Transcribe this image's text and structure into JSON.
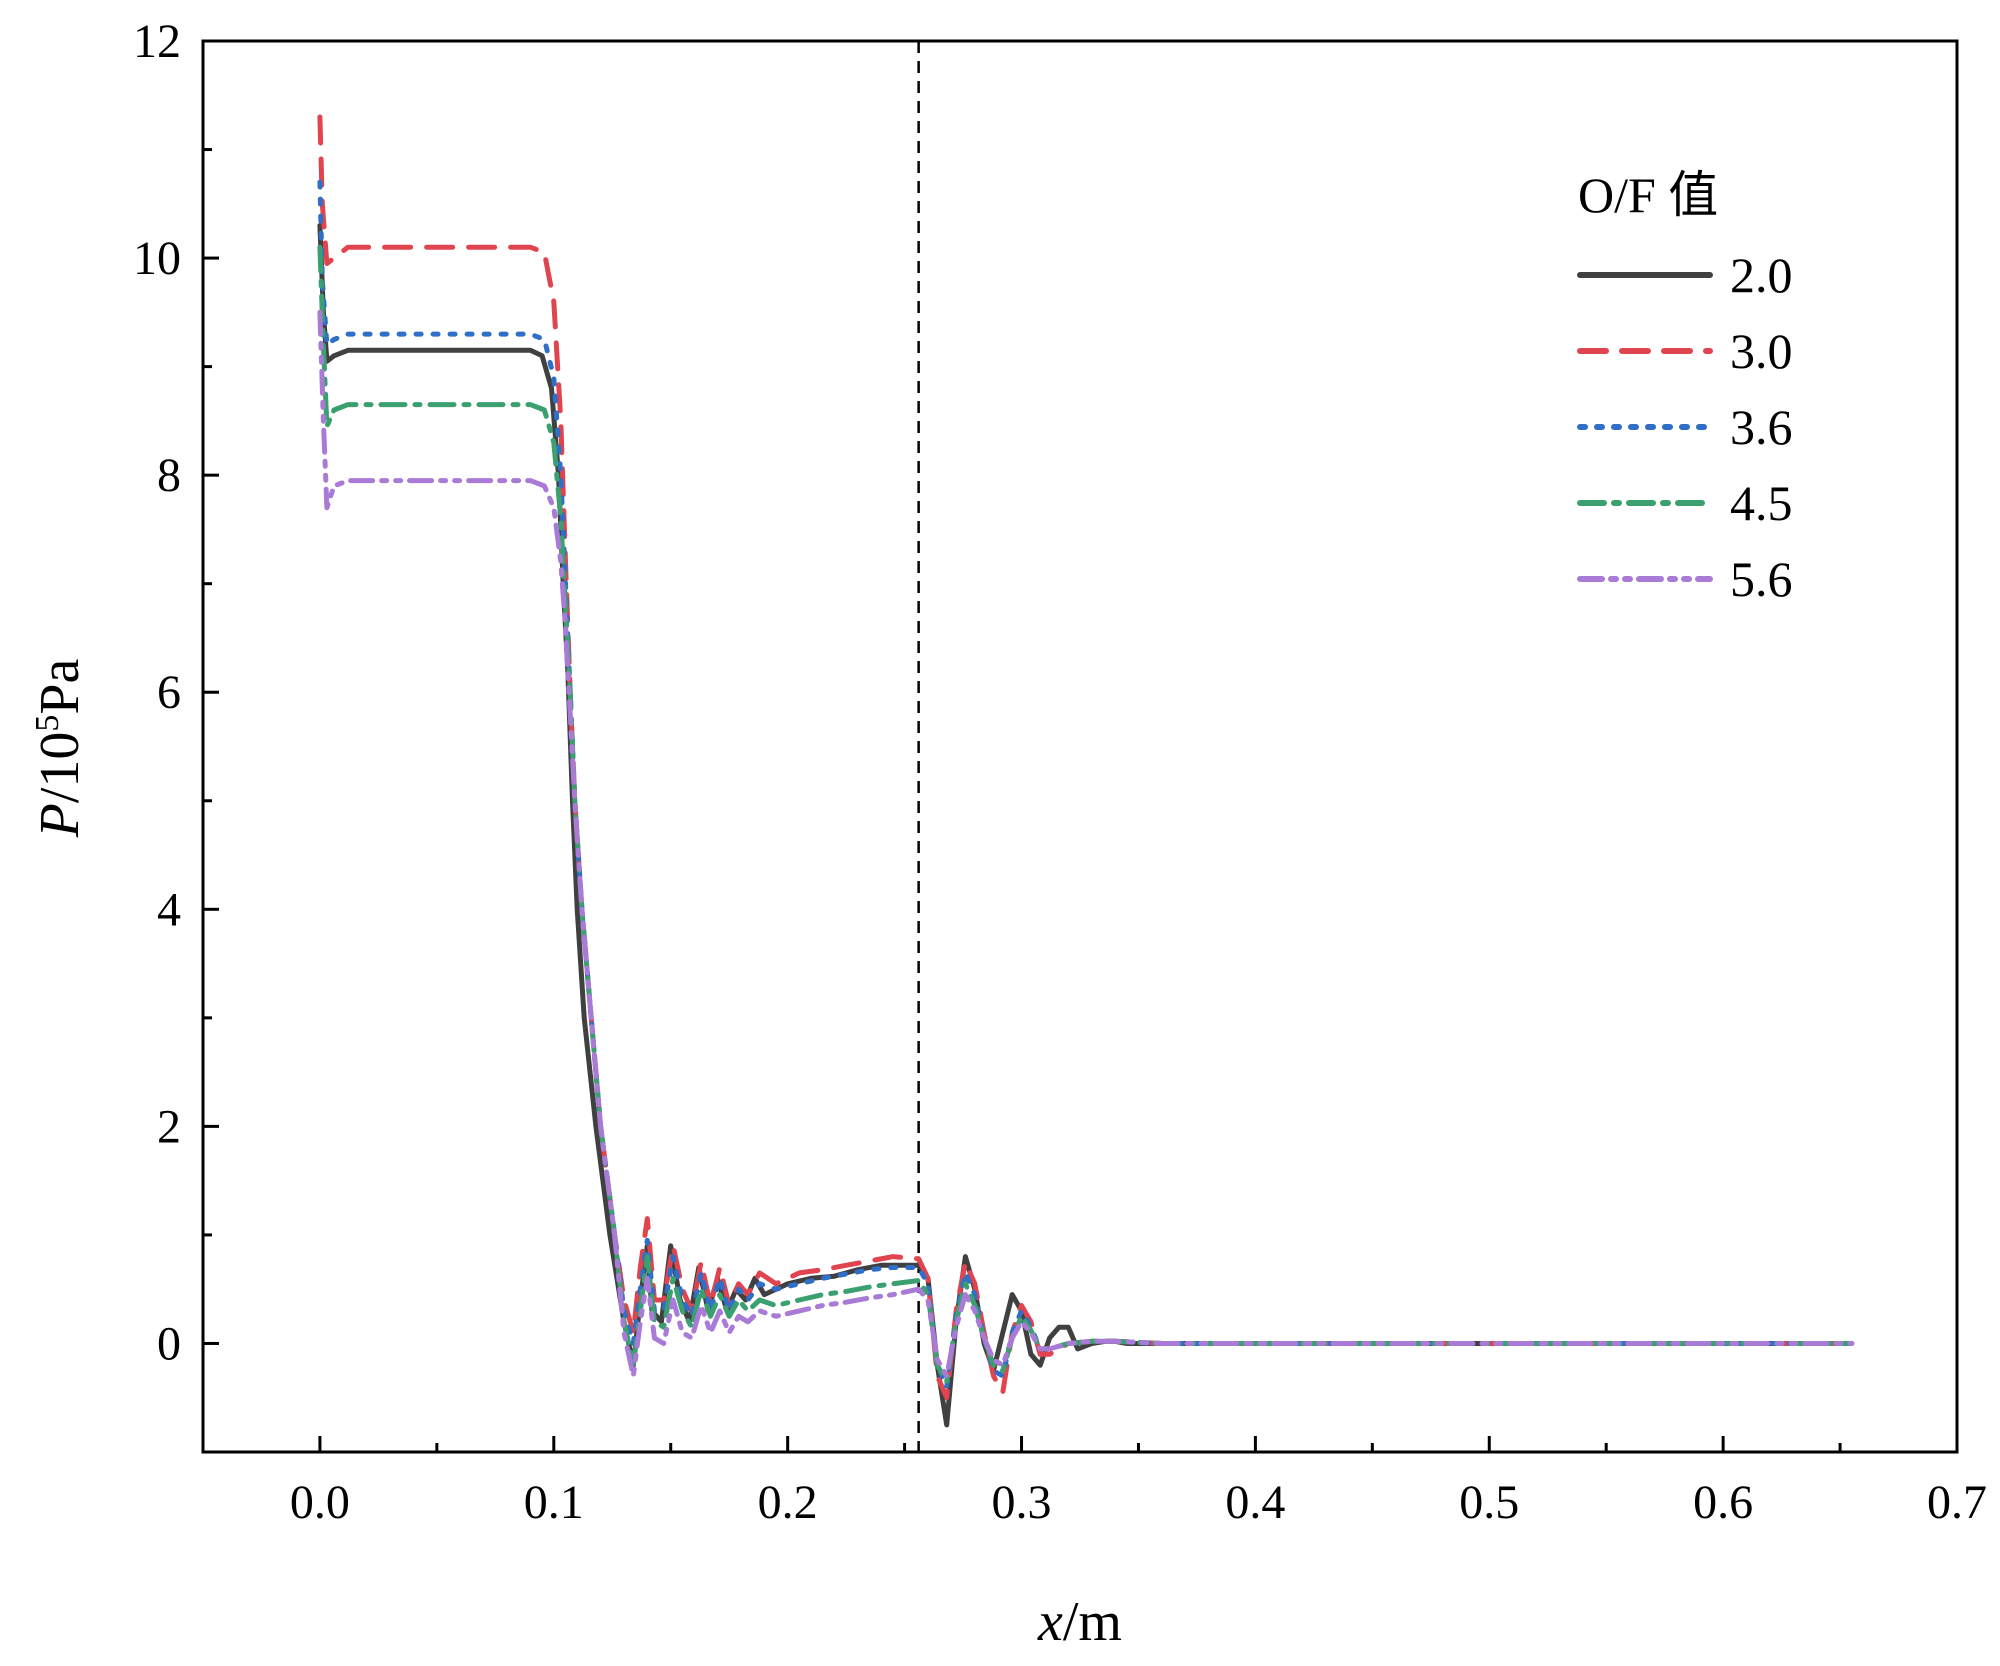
{
  "chart_data": {
    "type": "line",
    "xlabel_var": "x",
    "xlabel_unit": "/m",
    "ylabel_var": "P",
    "ylabel_rest": "/10",
    "ylabel_exp": "5",
    "ylabel_unit": "Pa",
    "xlim": [
      -0.05,
      0.7
    ],
    "ylim": [
      -1,
      12
    ],
    "xticks": [
      "0.0",
      "0.1",
      "0.2",
      "0.3",
      "0.4",
      "0.5",
      "0.6",
      "0.7"
    ],
    "yticks": [
      "0",
      "2",
      "4",
      "6",
      "8",
      "10",
      "12"
    ],
    "vline_x": 0.256,
    "legend": {
      "title": "O/F 值",
      "position": "top-right"
    },
    "series": [
      {
        "name": "2.0",
        "color": "#404040",
        "dash": "solid",
        "x": [
          0,
          0.0015,
          0.003,
          0.006,
          0.012,
          0.05,
          0.09,
          0.095,
          0.099,
          0.102,
          0.104,
          0.106,
          0.108,
          0.11,
          0.113,
          0.118,
          0.124,
          0.13,
          0.134,
          0.137,
          0.14,
          0.142,
          0.146,
          0.15,
          0.154,
          0.158,
          0.162,
          0.166,
          0.17,
          0.174,
          0.178,
          0.182,
          0.186,
          0.19,
          0.2,
          0.21,
          0.22,
          0.23,
          0.24,
          0.25,
          0.256,
          0.26,
          0.264,
          0.268,
          0.272,
          0.276,
          0.28,
          0.284,
          0.288,
          0.292,
          0.296,
          0.3,
          0.304,
          0.308,
          0.312,
          0.316,
          0.32,
          0.324,
          0.33,
          0.336,
          0.34,
          0.345,
          0.36,
          0.4,
          0.5,
          0.6,
          0.655
        ],
        "y": [
          10.3,
          9.5,
          9.05,
          9.1,
          9.15,
          9.15,
          9.15,
          9.1,
          8.8,
          8.0,
          7.0,
          6.2,
          5.0,
          4.0,
          3.0,
          2.0,
          1.0,
          0.2,
          -0.2,
          0.4,
          0.9,
          0.3,
          0.2,
          0.9,
          0.4,
          0.2,
          0.7,
          0.3,
          0.6,
          0.3,
          0.5,
          0.4,
          0.6,
          0.45,
          0.55,
          0.6,
          0.62,
          0.68,
          0.72,
          0.72,
          0.72,
          0.6,
          -0.2,
          -0.75,
          0.2,
          0.8,
          0.5,
          0.0,
          -0.25,
          0.1,
          0.45,
          0.3,
          -0.1,
          -0.2,
          0.05,
          0.15,
          0.15,
          -0.05,
          0.0,
          0.02,
          0.02,
          0.0,
          0.0,
          0.0,
          0.0,
          0.0,
          0.0
        ]
      },
      {
        "name": "3.0",
        "color": "#e0454f",
        "dash": "long-dash",
        "x": [
          0,
          0.001,
          0.003,
          0.006,
          0.012,
          0.05,
          0.09,
          0.096,
          0.1,
          0.103,
          0.105,
          0.107,
          0.109,
          0.112,
          0.116,
          0.12,
          0.126,
          0.13,
          0.134,
          0.137,
          0.14,
          0.143,
          0.147,
          0.151,
          0.155,
          0.159,
          0.163,
          0.167,
          0.171,
          0.175,
          0.179,
          0.183,
          0.188,
          0.195,
          0.205,
          0.215,
          0.225,
          0.235,
          0.245,
          0.256,
          0.26,
          0.264,
          0.268,
          0.272,
          0.276,
          0.28,
          0.284,
          0.288,
          0.292,
          0.296,
          0.3,
          0.304,
          0.308,
          0.312,
          0.32,
          0.33,
          0.34,
          0.36,
          0.4,
          0.5,
          0.6,
          0.655
        ],
        "y": [
          11.3,
          10.5,
          9.95,
          10.0,
          10.1,
          10.1,
          10.1,
          10.05,
          9.6,
          8.5,
          7.2,
          6.0,
          5.0,
          4.0,
          3.0,
          2.0,
          1.0,
          0.4,
          0.1,
          0.7,
          1.15,
          0.4,
          0.4,
          0.9,
          0.5,
          0.3,
          0.75,
          0.35,
          0.7,
          0.35,
          0.55,
          0.45,
          0.65,
          0.55,
          0.65,
          0.68,
          0.72,
          0.76,
          0.8,
          0.78,
          0.6,
          -0.3,
          -0.5,
          0.3,
          0.75,
          0.55,
          0.1,
          -0.3,
          -0.45,
          0.1,
          0.35,
          0.2,
          -0.1,
          -0.1,
          0.0,
          0.02,
          0.02,
          0.0,
          0.0,
          0.0,
          0.0,
          0.0
        ]
      },
      {
        "name": "3.6",
        "color": "#2f6fc8",
        "dash": "dot",
        "x": [
          0,
          0.001,
          0.003,
          0.006,
          0.012,
          0.05,
          0.09,
          0.096,
          0.1,
          0.103,
          0.105,
          0.107,
          0.109,
          0.112,
          0.116,
          0.12,
          0.126,
          0.13,
          0.134,
          0.137,
          0.14,
          0.143,
          0.147,
          0.151,
          0.155,
          0.159,
          0.163,
          0.167,
          0.171,
          0.175,
          0.179,
          0.183,
          0.188,
          0.195,
          0.205,
          0.215,
          0.225,
          0.235,
          0.245,
          0.256,
          0.26,
          0.264,
          0.268,
          0.272,
          0.276,
          0.28,
          0.284,
          0.288,
          0.292,
          0.296,
          0.3,
          0.304,
          0.308,
          0.312,
          0.32,
          0.33,
          0.34,
          0.36,
          0.4,
          0.5,
          0.6,
          0.655
        ],
        "y": [
          10.7,
          9.8,
          9.2,
          9.25,
          9.3,
          9.3,
          9.3,
          9.25,
          8.9,
          8.0,
          7.0,
          6.0,
          5.0,
          4.0,
          3.0,
          2.0,
          1.0,
          0.3,
          0.0,
          0.5,
          0.95,
          0.3,
          0.3,
          0.8,
          0.4,
          0.25,
          0.65,
          0.3,
          0.6,
          0.3,
          0.5,
          0.4,
          0.55,
          0.5,
          0.55,
          0.6,
          0.64,
          0.68,
          0.7,
          0.7,
          0.55,
          -0.2,
          -0.4,
          0.25,
          0.65,
          0.45,
          0.05,
          -0.25,
          -0.3,
          0.1,
          0.3,
          0.15,
          -0.05,
          -0.05,
          0.0,
          0.02,
          0.02,
          0.0,
          0.0,
          0.0,
          0.0,
          0.0
        ]
      },
      {
        "name": "4.5",
        "color": "#3aa070",
        "dash": "dash-dot",
        "x": [
          0,
          0.0015,
          0.003,
          0.006,
          0.012,
          0.05,
          0.09,
          0.096,
          0.1,
          0.103,
          0.105,
          0.107,
          0.109,
          0.112,
          0.116,
          0.12,
          0.126,
          0.13,
          0.134,
          0.137,
          0.14,
          0.143,
          0.147,
          0.151,
          0.155,
          0.159,
          0.163,
          0.167,
          0.171,
          0.175,
          0.179,
          0.183,
          0.188,
          0.195,
          0.205,
          0.215,
          0.225,
          0.235,
          0.245,
          0.256,
          0.26,
          0.264,
          0.268,
          0.272,
          0.276,
          0.28,
          0.284,
          0.288,
          0.292,
          0.296,
          0.3,
          0.304,
          0.308,
          0.312,
          0.32,
          0.33,
          0.34,
          0.36,
          0.4,
          0.5,
          0.6,
          0.655
        ],
        "y": [
          10.1,
          9.2,
          8.45,
          8.6,
          8.65,
          8.65,
          8.65,
          8.6,
          8.3,
          7.6,
          6.8,
          6.0,
          5.0,
          4.0,
          3.0,
          2.0,
          1.0,
          0.2,
          -0.2,
          0.3,
          0.8,
          0.2,
          0.15,
          0.6,
          0.3,
          0.15,
          0.5,
          0.25,
          0.45,
          0.25,
          0.4,
          0.3,
          0.4,
          0.35,
          0.4,
          0.45,
          0.48,
          0.52,
          0.55,
          0.58,
          0.45,
          -0.2,
          -0.35,
          0.2,
          0.55,
          0.35,
          0.05,
          -0.2,
          -0.25,
          0.05,
          0.25,
          0.12,
          -0.05,
          -0.05,
          0.0,
          0.02,
          0.02,
          0.0,
          0.0,
          0.0,
          0.0,
          0.0
        ]
      },
      {
        "name": "5.6",
        "color": "#a97bd6",
        "dash": "dash-dot-dot",
        "x": [
          0,
          0.0015,
          0.003,
          0.006,
          0.012,
          0.05,
          0.09,
          0.096,
          0.1,
          0.103,
          0.105,
          0.107,
          0.109,
          0.112,
          0.116,
          0.12,
          0.126,
          0.13,
          0.134,
          0.137,
          0.14,
          0.143,
          0.147,
          0.151,
          0.155,
          0.159,
          0.163,
          0.167,
          0.171,
          0.175,
          0.179,
          0.183,
          0.188,
          0.195,
          0.205,
          0.215,
          0.225,
          0.235,
          0.245,
          0.256,
          0.26,
          0.264,
          0.268,
          0.272,
          0.276,
          0.28,
          0.284,
          0.288,
          0.292,
          0.296,
          0.3,
          0.304,
          0.308,
          0.312,
          0.32,
          0.33,
          0.34,
          0.36,
          0.4,
          0.5,
          0.6,
          0.655
        ],
        "y": [
          9.5,
          8.5,
          7.7,
          7.9,
          7.95,
          7.95,
          7.95,
          7.9,
          7.7,
          7.2,
          6.6,
          5.8,
          5.0,
          4.0,
          3.0,
          2.0,
          1.0,
          0.1,
          -0.3,
          0.2,
          0.6,
          0.05,
          0.0,
          0.4,
          0.1,
          0.05,
          0.35,
          0.1,
          0.3,
          0.1,
          0.25,
          0.2,
          0.3,
          0.25,
          0.3,
          0.35,
          0.38,
          0.42,
          0.45,
          0.5,
          0.4,
          -0.15,
          -0.3,
          0.15,
          0.45,
          0.3,
          0.05,
          -0.15,
          -0.2,
          0.05,
          0.2,
          0.1,
          -0.05,
          -0.05,
          0.0,
          0.02,
          0.02,
          0.0,
          0.0,
          0.0,
          0.0,
          0.0
        ]
      }
    ]
  }
}
